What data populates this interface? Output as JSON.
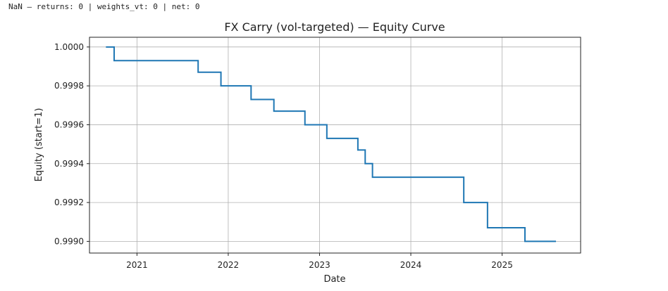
{
  "console": {
    "text": "NaN — returns: 0 | weights_vt: 0 | net: 0"
  },
  "chart_data": {
    "type": "line",
    "step": "post",
    "title": "FX Carry (vol-targeted) — Equity Curve",
    "xlabel": "Date",
    "ylabel": "Equity (start=1)",
    "xlim": [
      2020.48,
      2025.86
    ],
    "ylim": [
      0.99894,
      1.00005
    ],
    "xticks": [
      2021,
      2022,
      2023,
      2024,
      2025
    ],
    "xtick_labels": [
      "2021",
      "2022",
      "2023",
      "2024",
      "2025"
    ],
    "yticks": [
      0.999,
      0.9992,
      0.9994,
      0.9996,
      0.9998,
      1.0
    ],
    "ytick_labels": [
      "0.9990",
      "0.9992",
      "0.9994",
      "0.9996",
      "0.9998",
      "1.0000"
    ],
    "grid": true,
    "series": [
      {
        "name": "Equity",
        "color": "#1f77b4",
        "x": [
          2020.66,
          2020.75,
          2021.67,
          2021.92,
          2022.25,
          2022.5,
          2022.84,
          2023.08,
          2023.42,
          2023.5,
          2023.58,
          2024.58,
          2024.84,
          2025.25,
          2025.59
        ],
        "y": [
          1.0,
          0.99993,
          0.99987,
          0.9998,
          0.99973,
          0.99967,
          0.9996,
          0.99953,
          0.99947,
          0.9994,
          0.99933,
          0.9992,
          0.99907,
          0.999,
          0.999
        ]
      }
    ]
  }
}
